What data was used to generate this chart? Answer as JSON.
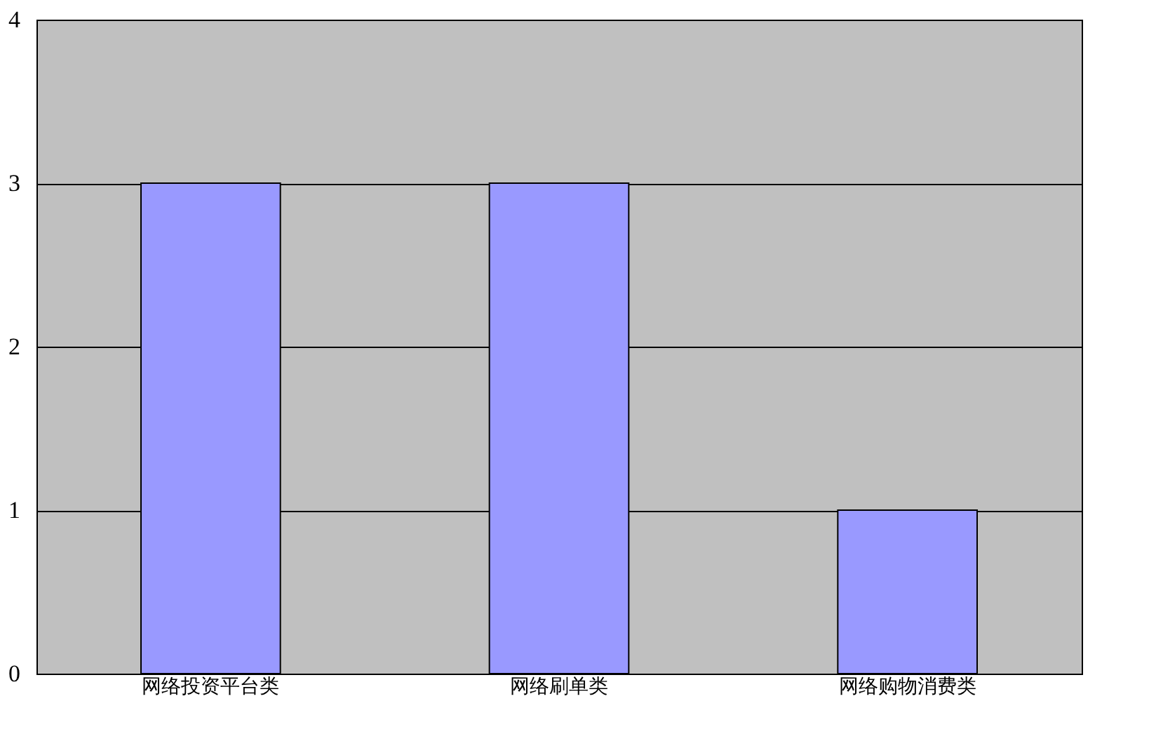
{
  "chart_data": {
    "type": "bar",
    "categories": [
      "网络投资平台类",
      "网络刷单类",
      "网络购物消费类"
    ],
    "values": [
      3,
      3,
      1
    ],
    "color": "#9999ff",
    "ylim": [
      0,
      4
    ],
    "yticks": [
      0,
      1,
      2,
      3,
      4
    ],
    "grid": "y"
  }
}
